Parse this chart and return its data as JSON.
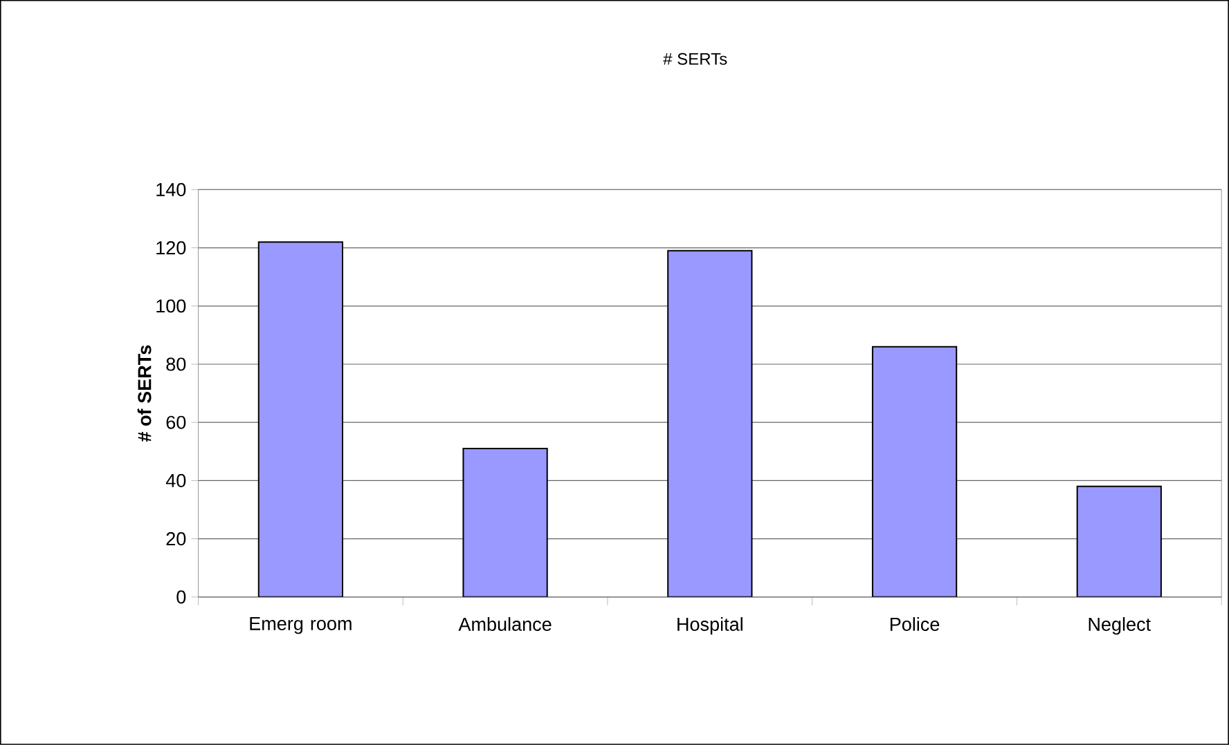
{
  "chart_data": {
    "type": "bar",
    "title": "# SERTs",
    "ylabel": "# of SERTs",
    "categories": [
      "Emerg room",
      "Ambulance",
      "Hospital",
      "Police",
      "Neglect"
    ],
    "values": [
      122,
      51,
      119,
      86,
      38
    ],
    "color": "#9999ff",
    "ylim": [
      0,
      140
    ],
    "yticks": [
      0,
      20,
      40,
      60,
      80,
      100,
      120,
      140
    ],
    "grid": "y"
  }
}
